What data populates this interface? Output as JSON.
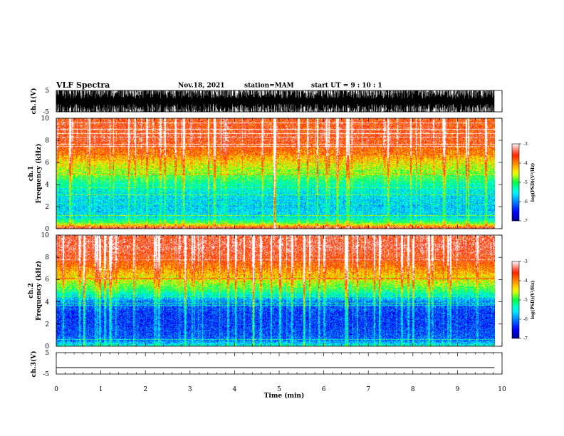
{
  "header": {
    "title": "VLF Spectra",
    "date": "Nov.18, 2021",
    "station": "station=MAM",
    "start": "start  UT =   9 : 10 : 1"
  },
  "chart_data": [
    {
      "type": "line",
      "name": "ch1-waveform",
      "ylabel": "ch.1(V)",
      "yticks": [
        "5",
        "-5"
      ],
      "ylim": [
        -5,
        5
      ],
      "xlim": [
        0,
        10
      ]
    },
    {
      "type": "heatmap",
      "name": "ch1-spectrogram",
      "ylabel_line1": "ch.1",
      "ylabel_line2": "Frequency  (kHz)",
      "xlim": [
        0,
        10
      ],
      "ylim": [
        0,
        10
      ],
      "yticks": [
        "0",
        "2",
        "4",
        "6",
        "8",
        "10"
      ],
      "data_xlim": [
        0,
        9.83
      ],
      "colorbar": {
        "title": "log(PSD)(V²/Hz)",
        "range": [
          -7,
          -3
        ],
        "ticks": [
          "-3",
          "-4",
          "-5",
          "-6",
          "-7"
        ]
      },
      "profile_logpsd": {
        "freq_khz": [
          0,
          0.5,
          1,
          2,
          3,
          4,
          5,
          6,
          7,
          8,
          9,
          10
        ],
        "value": [
          -3.6,
          -4.9,
          -5.6,
          -5.7,
          -5.6,
          -5.3,
          -4.8,
          -4.4,
          -3.9,
          -3.6,
          -3.6,
          -3.7
        ]
      }
    },
    {
      "type": "heatmap",
      "name": "ch2-spectrogram",
      "ylabel_line1": "ch.2",
      "ylabel_line2": "Frequency  (kHz)",
      "xlim": [
        0,
        10
      ],
      "ylim": [
        0,
        10
      ],
      "yticks": [
        "0",
        "2",
        "4",
        "6",
        "8",
        "10"
      ],
      "data_xlim": [
        0,
        9.83
      ],
      "colorbar": {
        "title": "log(PSD)(V²/Hz)",
        "range": [
          -7,
          -3
        ],
        "ticks": [
          "-3",
          "-4",
          "-5",
          "-6",
          "-7"
        ]
      },
      "profile_logpsd": {
        "freq_khz": [
          0,
          0.5,
          1,
          2,
          3,
          4,
          5,
          6,
          7,
          8,
          9,
          10
        ],
        "value": [
          -5.4,
          -6.1,
          -6.2,
          -6.3,
          -6.3,
          -6.0,
          -5.1,
          -4.5,
          -4.0,
          -3.6,
          -3.4,
          -3.5
        ]
      }
    },
    {
      "type": "line",
      "name": "ch3-waveform",
      "ylabel": "ch.3(V)",
      "yticks": [
        "5",
        "-5"
      ],
      "ylim": [
        -5,
        5
      ],
      "xlim": [
        0,
        10
      ],
      "level_v": -2
    }
  ],
  "xaxis": {
    "label": "Time  (min)",
    "ticks": [
      "0",
      "1",
      "2",
      "3",
      "4",
      "5",
      "6",
      "7",
      "8",
      "9",
      "10"
    ]
  },
  "colors": {
    "axis": "#000000",
    "trace": "#000000",
    "background": "#ffffff"
  }
}
